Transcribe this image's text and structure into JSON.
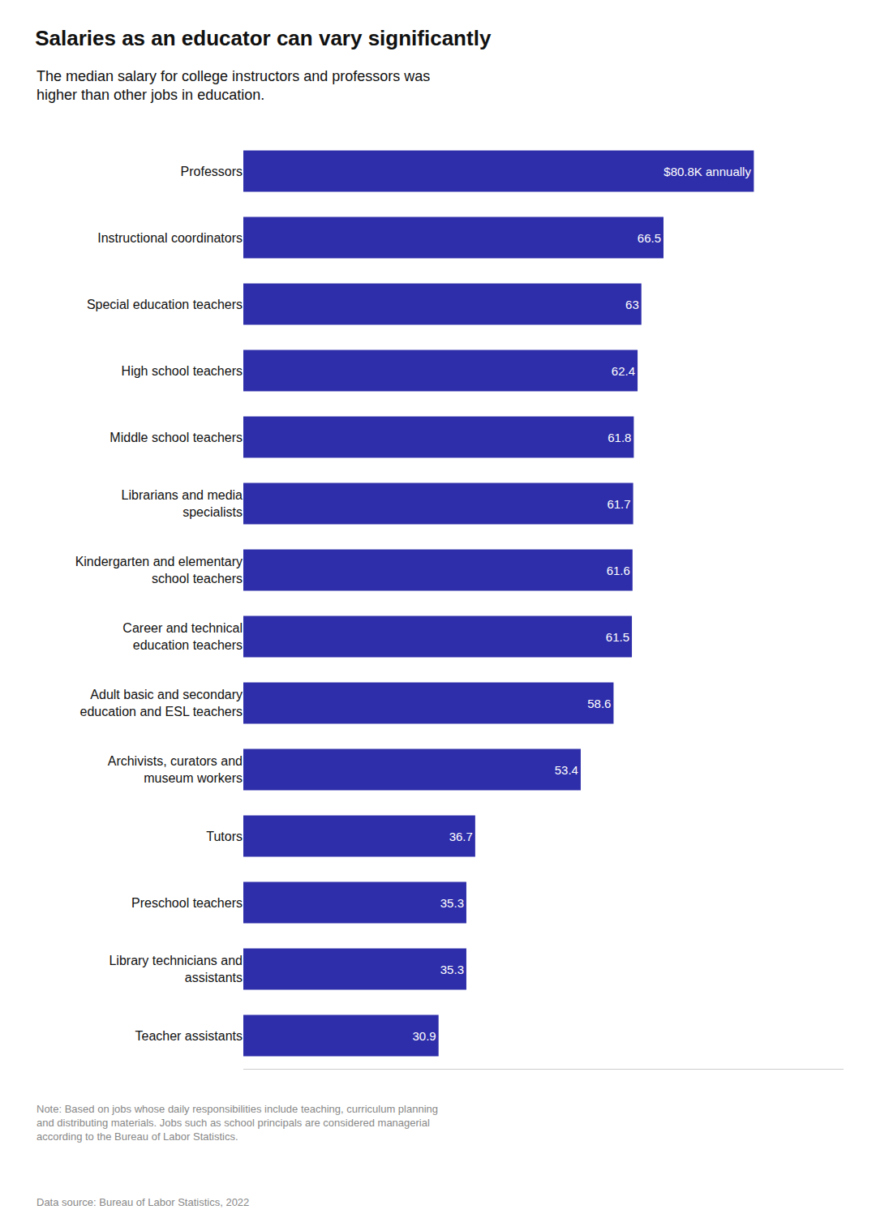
{
  "chart_data": {
    "type": "bar",
    "title": "Salaries as an educator can vary significantly",
    "subtitle": "The median salary for college instructors and professors was\nhigher than other jobs in education.",
    "annotations": [
      "Note: Based on jobs whose daily responsibilities include teaching, curriculum planning\nand distributing materials. Jobs such as school principals are considered managerial\naccording to the Bureau of Labor Statistics.",
      "Data source: Bureau of Labor Statistics, 2022"
    ],
    "categories": [
      "Professors",
      "Instructional coordinators",
      "Special education teachers",
      "High school teachers",
      "Middle school teachers",
      "Librarians and media\nspecialists",
      "Kindergarten and elementary\nschool teachers",
      "Career and technical\neducation teachers",
      "Adult basic and secondary\neducation and ESL teachers",
      "Archivists, curators and\nmuseum workers",
      "Tutors",
      "Preschool teachers",
      "Library technicians and\nassistants",
      "Teacher assistants"
    ],
    "values": [
      80.8,
      66.5,
      63.0,
      62.4,
      61.8,
      61.7,
      61.6,
      61.5,
      58.6,
      53.4,
      36.7,
      35.3,
      35.3,
      30.9
    ],
    "value_labels": [
      "$80.8K annually",
      "66.5",
      "63",
      "62.4",
      "61.8",
      "61.7",
      "61.6",
      "61.5",
      "58.6",
      "53.4",
      "36.7",
      "35.3",
      "35.3",
      "30.9"
    ],
    "color": "#2E2EAA",
    "orientation": "horizontal",
    "data_labels": true,
    "xlim": [
      0,
      95
    ],
    "grid": false,
    "tick_labels": "y"
  }
}
